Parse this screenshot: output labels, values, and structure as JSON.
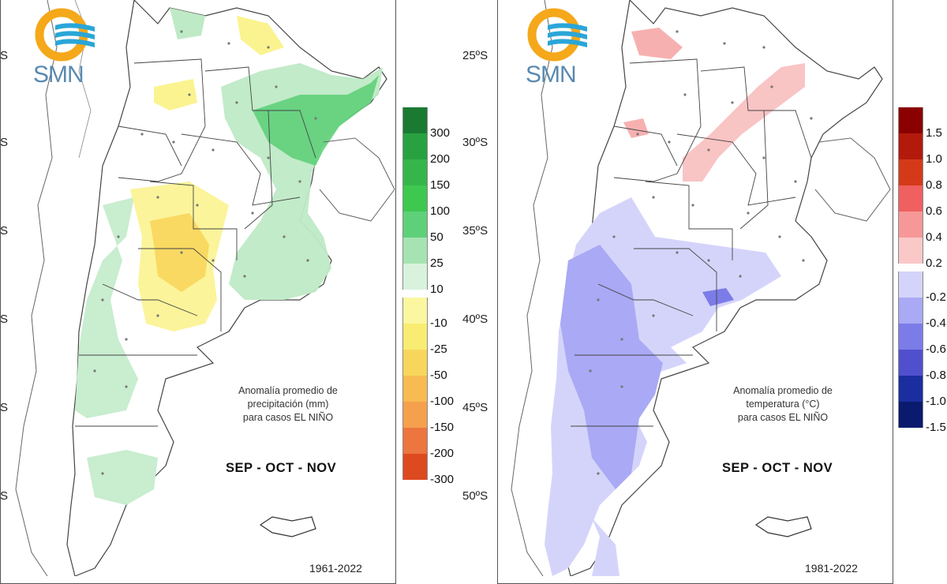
{
  "logo_text": "SMN",
  "latitudes": [
    "25ºS",
    "30ºS",
    "35ºS",
    "40ºS",
    "45ºS",
    "50ºS"
  ],
  "left_edge_label": "S",
  "precip": {
    "caption": [
      "Anomalía promedio de",
      "precipitación (mm)",
      "para casos EL NIÑO"
    ],
    "season": "SEP - OCT - NOV",
    "period": "1961-2022",
    "legend": [
      {
        "label": "300",
        "color": "#1a7a32"
      },
      {
        "label": "200",
        "color": "#28a240"
      },
      {
        "label": "150",
        "color": "#36b64a"
      },
      {
        "label": "100",
        "color": "#3ec850"
      },
      {
        "label": "50",
        "color": "#5fd07a"
      },
      {
        "label": "25",
        "color": "#a6e3b2"
      },
      {
        "label": "10",
        "color": "#d9f2dd"
      },
      {
        "label": "-10",
        "color": "#fbf7a0"
      },
      {
        "label": "-25",
        "color": "#f9ec72"
      },
      {
        "label": "-50",
        "color": "#f8d65c"
      },
      {
        "label": "-100",
        "color": "#f7bb52"
      },
      {
        "label": "-150",
        "color": "#f5a04c"
      },
      {
        "label": "-200",
        "color": "#ec7540"
      },
      {
        "label": "-300",
        "color": "#de4a20"
      }
    ]
  },
  "temp": {
    "caption": [
      "Anomalía promedio de",
      "temperatura (°C)",
      "para casos EL NIÑO"
    ],
    "season": "SEP - OCT - NOV",
    "period": "1981-2022",
    "legend": [
      {
        "label": "1.5",
        "color": "#8b0000"
      },
      {
        "label": "1.0",
        "color": "#b31a0c"
      },
      {
        "label": "0.8",
        "color": "#d43a1a"
      },
      {
        "label": "0.6",
        "color": "#f06060"
      },
      {
        "label": "0.4",
        "color": "#f79898"
      },
      {
        "label": "0.2",
        "color": "#fbc8c8"
      },
      {
        "label": "-0.2",
        "color": "#d4d4fb"
      },
      {
        "label": "-0.4",
        "color": "#a9a9f5"
      },
      {
        "label": "-0.6",
        "color": "#7c7ce8"
      },
      {
        "label": "-0.8",
        "color": "#5050cf"
      },
      {
        "label": "-1.0",
        "color": "#1a2ea0"
      },
      {
        "label": "-1.5",
        "color": "#0a1a6e"
      }
    ]
  }
}
